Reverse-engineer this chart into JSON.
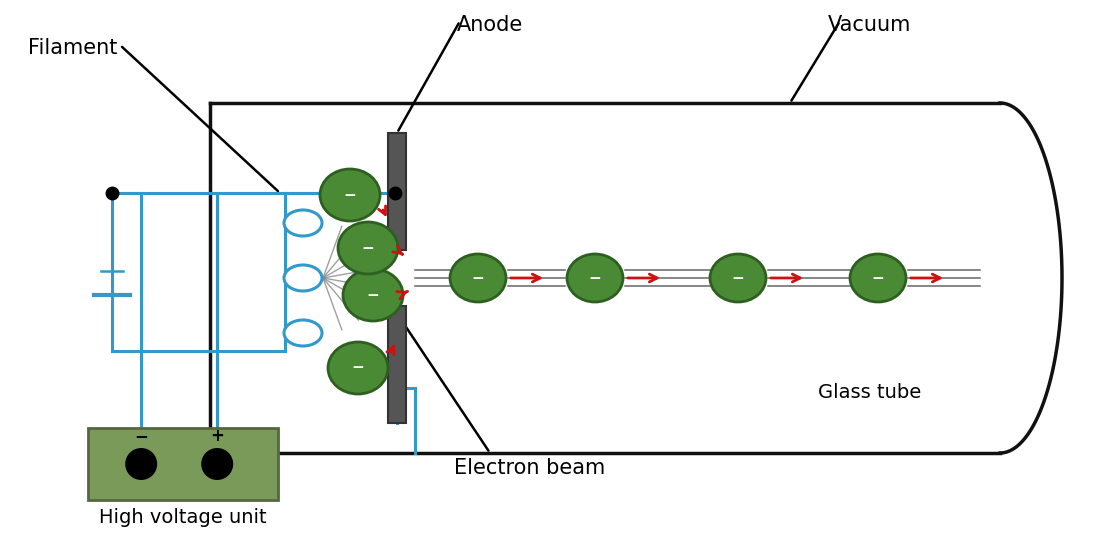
{
  "bg_color": "#ffffff",
  "tube_color": "#111111",
  "blue_wire_color": "#3399cc",
  "electron_green": "#4a8a35",
  "electron_dark": "#2d5f20",
  "red_arrow_color": "#cc1111",
  "battery_green": "#7a9a5a",
  "battery_border": "#556640",
  "label_filament": "Filament",
  "label_anode": "Anode",
  "label_vacuum": "Vacuum",
  "label_glass": "Glass tube",
  "label_electron_beam": "Electron beam",
  "label_hv": "High voltage unit",
  "label_minus": "−",
  "label_plus": "+",
  "fontsize_labels": 15,
  "fontsize_signs": 11
}
